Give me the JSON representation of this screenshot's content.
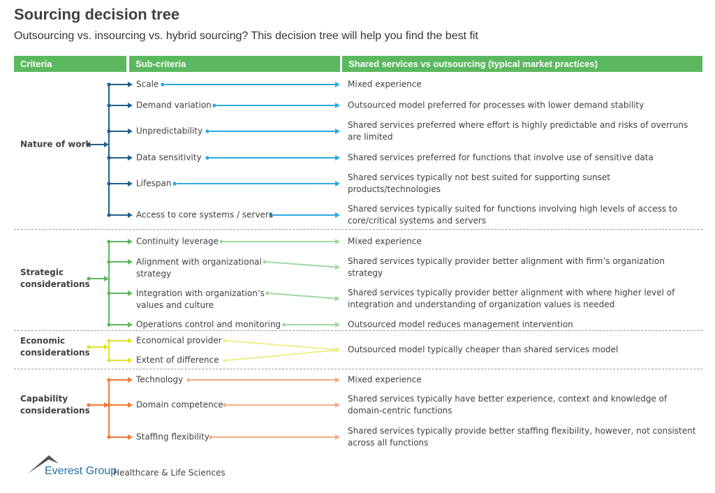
{
  "title": "Sourcing decision tree",
  "subtitle": "Outsourcing vs. insourcing vs. hybrid sourcing? This decision tree will help you find the best fit",
  "header": {
    "criteria": "Criteria",
    "sub_criteria": "Sub-criteria",
    "outcome": "Shared services vs outsourcing (typical market practices)",
    "color": "#5cb85f"
  },
  "groups": [
    {
      "criteria": "Nature of work",
      "color": "#1f5f8b",
      "light": "#29abe2",
      "rows": [
        {
          "sub": "Scale",
          "outcome": "Mixed experience"
        },
        {
          "sub": "Demand variation",
          "outcome": "Outsourced model preferred for processes with lower demand stability"
        },
        {
          "sub": "Unpredictability",
          "outcome": "Shared services preferred where effort is highly predictable and risks of overruns are limited"
        },
        {
          "sub": "Data sensitivity",
          "outcome": "Shared services preferred for functions that involve use of sensitive data"
        },
        {
          "sub": "Lifespan",
          "outcome": "Shared services typically not best suited for supporting sunset products/technologies"
        },
        {
          "sub": "Access to core systems / servers",
          "outcome": "Shared services typically suited for functions involving high levels of access to core/critical systems and servers"
        }
      ]
    },
    {
      "criteria": "Strategic considerations",
      "color": "#5cb85f",
      "light": "#9fd8a0",
      "rows": [
        {
          "sub": "Continuity leverage",
          "outcome": "Mixed experience"
        },
        {
          "sub": "Alignment with organizational strategy",
          "outcome": "Shared services typically provider better alignment with firm’s organization strategy"
        },
        {
          "sub": "Integration with organization’s values and culture",
          "outcome": "Shared services typically provider better alignment with where higher level of integration and understanding of organization values is needed"
        },
        {
          "sub": "Operations control and monitoring",
          "outcome": "Outsourced model reduces management intervention"
        }
      ]
    },
    {
      "criteria": "Economic considerations",
      "color": "#e2e22e",
      "light": "#eeee8a",
      "rows": [
        {
          "sub": "Economical provider",
          "outcome": "Outsourced model typically cheaper than shared services model"
        },
        {
          "sub": "Extent of difference",
          "outcome": ""
        }
      ]
    },
    {
      "criteria": "Capability considerations",
      "color": "#f07a38",
      "light": "#f7ab84",
      "rows": [
        {
          "sub": "Technology",
          "outcome": "Mixed experience"
        },
        {
          "sub": "Domain competence",
          "outcome": "Shared services typically have better experience, context and knowledge of domain-centric functions"
        },
        {
          "sub": "Staffing flexibility",
          "outcome": "Shared services typically provide better staffing flexibility, however, not consistent across all functions"
        }
      ]
    }
  ],
  "footer": {
    "logo": "Everest Group",
    "division": "Healthcare & Life Sciences"
  }
}
